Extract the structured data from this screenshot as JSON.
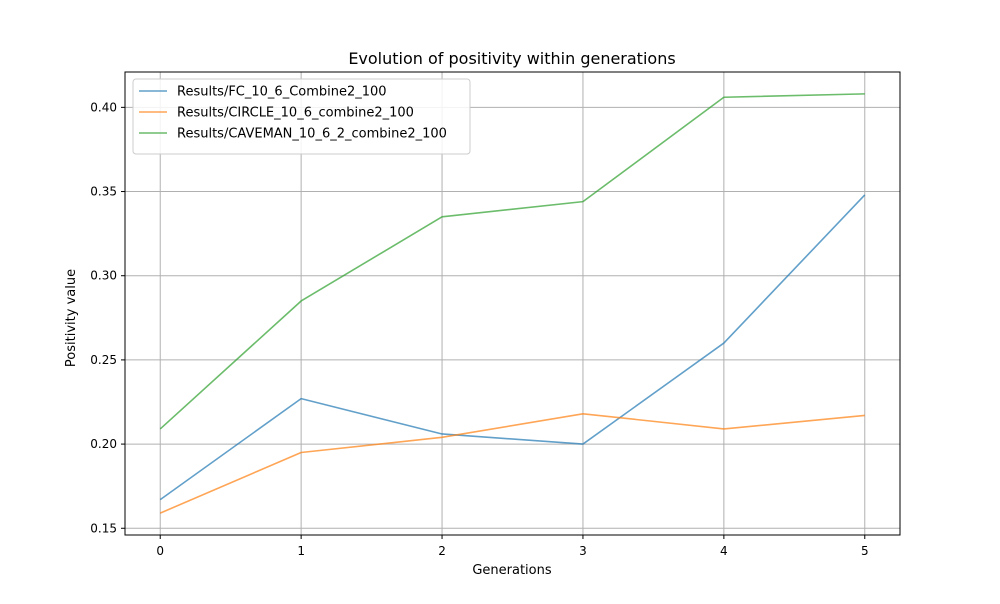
{
  "chart_data": {
    "type": "line",
    "title": "Evolution of positivity within generations",
    "xlabel": "Generations",
    "ylabel": "Positivity value",
    "x": [
      0,
      1,
      2,
      3,
      4,
      5
    ],
    "xlim": [
      -0.25,
      5.25
    ],
    "ylim": [
      0.146,
      0.421
    ],
    "xticks": [
      0,
      1,
      2,
      3,
      4,
      5
    ],
    "xtick_labels": [
      "0",
      "1",
      "2",
      "3",
      "4",
      "5"
    ],
    "yticks": [
      0.15,
      0.2,
      0.25,
      0.3,
      0.35,
      0.4
    ],
    "ytick_labels": [
      "0.15",
      "0.20",
      "0.25",
      "0.30",
      "0.35",
      "0.40"
    ],
    "grid": true,
    "legend_position": "upper-left",
    "series": [
      {
        "name": "Results/FC_10_6_Combine2_100",
        "color": "#1f77b4",
        "values": [
          0.167,
          0.227,
          0.206,
          0.2,
          0.26,
          0.348
        ]
      },
      {
        "name": "Results/CIRCLE_10_6_combine2_100",
        "color": "#ff7f0e",
        "values": [
          0.159,
          0.195,
          0.204,
          0.218,
          0.209,
          0.217
        ]
      },
      {
        "name": "Results/CAVEMAN_10_6_2_combine2_100",
        "color": "#2ca02c",
        "values": [
          0.209,
          0.285,
          0.335,
          0.344,
          0.406,
          0.408
        ]
      }
    ]
  }
}
